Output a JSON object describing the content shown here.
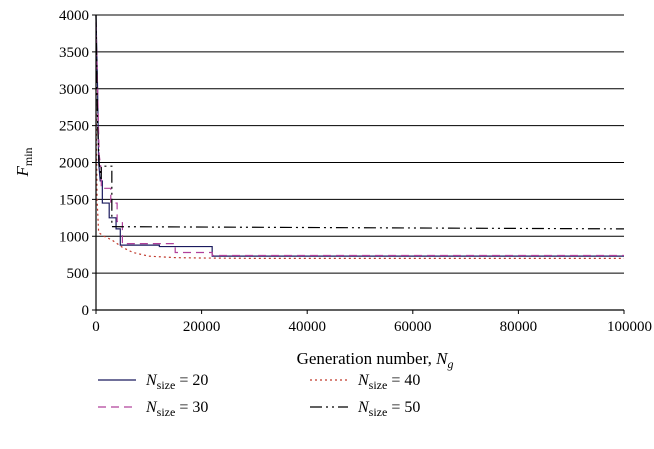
{
  "chart_data": {
    "type": "line",
    "xlabel": "Generation number, ",
    "xlabel_sub": "g",
    "xlabel_var": "N",
    "ylabel": "F",
    "ylabel_sub": "min",
    "xlim": [
      0,
      100000
    ],
    "ylim": [
      0,
      4000
    ],
    "x_ticks": [
      0,
      20000,
      40000,
      60000,
      80000,
      100000
    ],
    "y_ticks": [
      0,
      500,
      1000,
      1500,
      2000,
      2500,
      3000,
      3500,
      4000
    ],
    "grid": "horizontal",
    "legend_position": "bottom",
    "series": [
      {
        "name": "N",
        "name_sub": "size",
        "name_value": " = 20",
        "color": "#1a1a5e",
        "dash": "",
        "x": [
          0,
          300,
          500,
          800,
          1200,
          1200,
          2500,
          2500,
          3800,
          3800,
          4600,
          4600,
          12000,
          12000,
          22000,
          22000,
          100000
        ],
        "y": [
          4000,
          3000,
          2000,
          1750,
          1750,
          1450,
          1450,
          1250,
          1250,
          1100,
          1100,
          880,
          880,
          860,
          860,
          730,
          730
        ]
      },
      {
        "name": "N",
        "name_sub": "size",
        "name_value": " = 30",
        "color": "#b0409a",
        "dash": "8,5",
        "x": [
          0,
          300,
          600,
          1000,
          1000,
          2800,
          2800,
          4000,
          4000,
          5000,
          5000,
          15000,
          15000,
          22000,
          22000,
          100000
        ],
        "y": [
          3900,
          3000,
          2100,
          1900,
          1650,
          1650,
          1450,
          1450,
          1200,
          1200,
          900,
          900,
          780,
          780,
          740,
          740
        ]
      },
      {
        "name": "N",
        "name_sub": "size",
        "name_value": " = 40",
        "color": "#c0392b",
        "dash": "2,3",
        "x": [
          0,
          200,
          500,
          1500,
          3000,
          5000,
          7000,
          10000,
          15000,
          20000,
          30000,
          50000,
          100000
        ],
        "y": [
          3000,
          1500,
          1050,
          1000,
          950,
          850,
          780,
          730,
          710,
          705,
          700,
          700,
          700
        ]
      },
      {
        "name": "N",
        "name_sub": "size",
        "name_value": " = 50",
        "color": "#000000",
        "dash": "12,4,2,4,2,4",
        "x": [
          0,
          300,
          600,
          1000,
          1000,
          3000,
          3000,
          100000
        ],
        "y": [
          4000,
          2500,
          2000,
          1750,
          1950,
          1950,
          1130,
          1100
        ]
      }
    ]
  }
}
